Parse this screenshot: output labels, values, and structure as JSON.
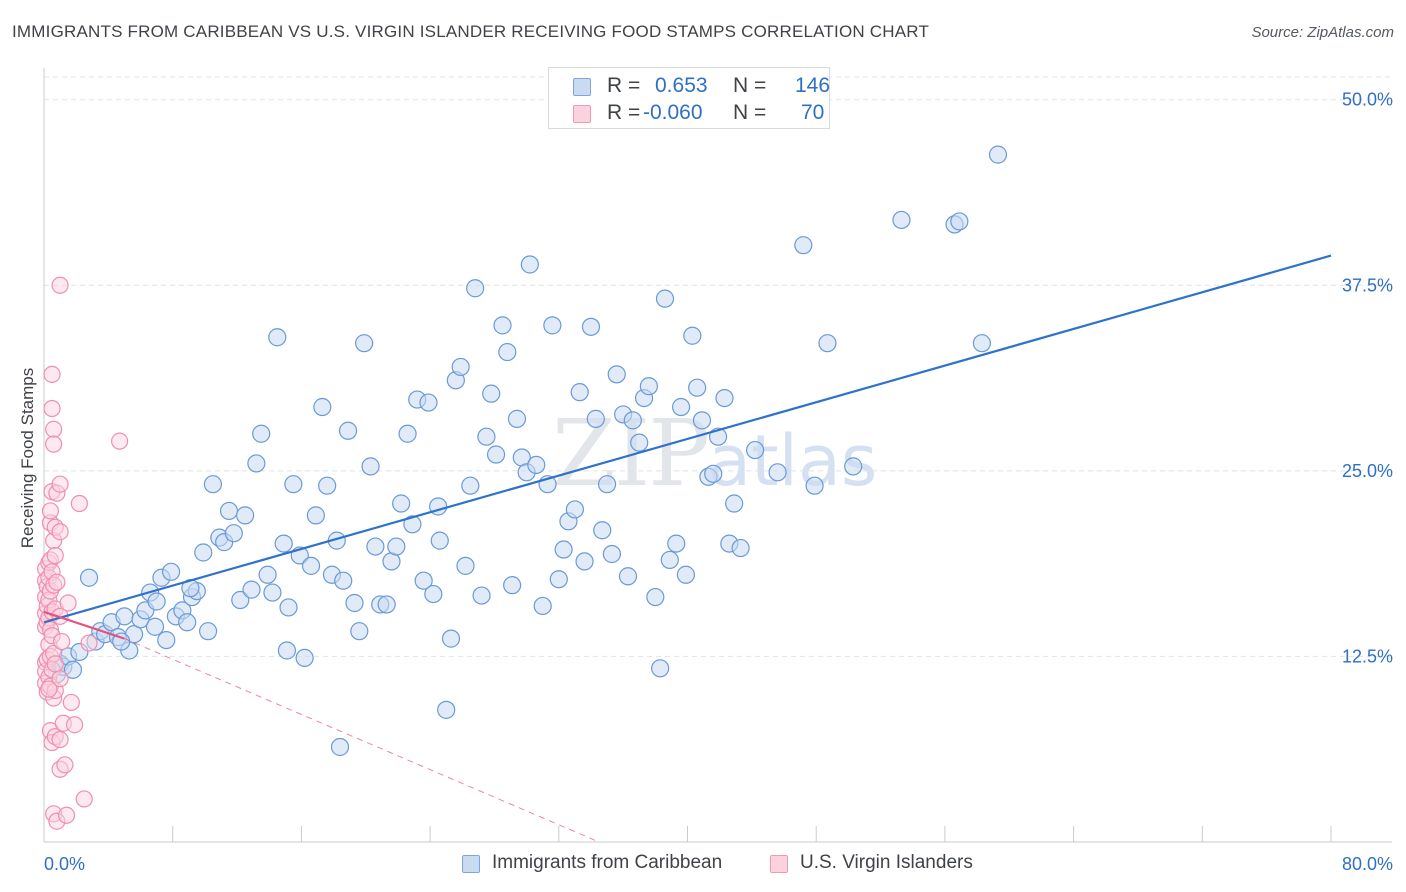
{
  "title": "IMMIGRANTS FROM CARIBBEAN VS U.S. VIRGIN ISLANDER RECEIVING FOOD STAMPS CORRELATION CHART",
  "source": "Source: ZipAtlas.com",
  "watermark": {
    "zip": "ZIP",
    "atlas": "atlas"
  },
  "legend_top": {
    "rows": [
      {
        "r_label": "R =",
        "r_value": "0.653",
        "n_label": "N =",
        "n_value": "146"
      },
      {
        "r_label": "R =",
        "r_value": "-0.060",
        "n_label": "N =",
        "n_value": "70"
      }
    ]
  },
  "colors": {
    "blue_fill": "#c9dbf3",
    "blue_stroke": "#6a9ad6",
    "blue_line": "#2f72cc",
    "pink_fill": "#fbd3df",
    "pink_stroke": "#ef8fb0",
    "pink_line": "#e6527c",
    "grid": "#dfe3e8",
    "axis_label": "#2f6fc4"
  },
  "chart_data": {
    "type": "scatter",
    "title": "IMMIGRANTS FROM CARIBBEAN VS U.S. VIRGIN ISLANDER RECEIVING FOOD STAMPS CORRELATION CHART",
    "xlabel": "",
    "ylabel": "Receiving Food Stamps",
    "xlim": [
      0,
      80
    ],
    "ylim": [
      0,
      52
    ],
    "x_tick_labels": [
      "0.0%",
      "80.0%"
    ],
    "y_ticks": [
      12.5,
      25.0,
      37.5,
      50.0
    ],
    "y_tick_labels": [
      "12.5%",
      "25.0%",
      "37.5%",
      "50.0%"
    ],
    "grid": true,
    "series": [
      {
        "name": "Immigrants from Caribbean",
        "color": "#6a9ad6",
        "R": 0.653,
        "N": 146,
        "trend": {
          "x": [
            0,
            80
          ],
          "y": [
            14.8,
            39.5
          ]
        },
        "points": [
          [
            0.8,
            11.3
          ],
          [
            1.0,
            12.0
          ],
          [
            1.2,
            11.8
          ],
          [
            1.5,
            12.5
          ],
          [
            1.8,
            11.6
          ],
          [
            2.2,
            12.8
          ],
          [
            2.8,
            17.8
          ],
          [
            3.2,
            13.5
          ],
          [
            3.5,
            14.2
          ],
          [
            3.8,
            14.0
          ],
          [
            4.2,
            14.8
          ],
          [
            4.6,
            13.8
          ],
          [
            5.0,
            15.2
          ],
          [
            5.3,
            12.9
          ],
          [
            5.6,
            14.0
          ],
          [
            6.0,
            15.0
          ],
          [
            6.3,
            15.6
          ],
          [
            6.6,
            16.8
          ],
          [
            6.9,
            14.5
          ],
          [
            7.3,
            17.8
          ],
          [
            7.6,
            13.6
          ],
          [
            7.9,
            18.2
          ],
          [
            8.2,
            15.2
          ],
          [
            8.6,
            15.6
          ],
          [
            8.9,
            14.8
          ],
          [
            9.2,
            16.5
          ],
          [
            9.5,
            16.9
          ],
          [
            9.9,
            19.5
          ],
          [
            10.2,
            14.2
          ],
          [
            10.5,
            24.1
          ],
          [
            10.9,
            20.5
          ],
          [
            11.2,
            20.2
          ],
          [
            11.5,
            22.3
          ],
          [
            11.8,
            20.8
          ],
          [
            12.2,
            16.3
          ],
          [
            12.5,
            22.0
          ],
          [
            12.9,
            17.0
          ],
          [
            13.2,
            25.5
          ],
          [
            13.5,
            27.5
          ],
          [
            13.9,
            18.0
          ],
          [
            14.2,
            16.8
          ],
          [
            14.5,
            34.0
          ],
          [
            14.9,
            20.1
          ],
          [
            15.2,
            15.8
          ],
          [
            15.5,
            24.1
          ],
          [
            15.9,
            19.3
          ],
          [
            16.2,
            12.4
          ],
          [
            16.6,
            18.6
          ],
          [
            16.9,
            22.0
          ],
          [
            17.3,
            29.3
          ],
          [
            17.6,
            24.0
          ],
          [
            17.9,
            18.0
          ],
          [
            18.2,
            20.3
          ],
          [
            18.6,
            17.6
          ],
          [
            18.9,
            27.7
          ],
          [
            19.3,
            16.1
          ],
          [
            19.6,
            14.2
          ],
          [
            19.9,
            33.6
          ],
          [
            20.3,
            25.3
          ],
          [
            20.6,
            19.9
          ],
          [
            20.9,
            16.0
          ],
          [
            21.3,
            16.0
          ],
          [
            21.6,
            18.9
          ],
          [
            21.9,
            19.9
          ],
          [
            22.2,
            22.8
          ],
          [
            22.6,
            27.5
          ],
          [
            22.9,
            21.4
          ],
          [
            23.2,
            29.8
          ],
          [
            23.6,
            17.6
          ],
          [
            23.9,
            29.6
          ],
          [
            24.2,
            16.7
          ],
          [
            24.5,
            22.6
          ],
          [
            24.6,
            20.3
          ],
          [
            25.0,
            8.9
          ],
          [
            25.3,
            13.7
          ],
          [
            25.6,
            31.1
          ],
          [
            25.9,
            32.0
          ],
          [
            26.2,
            18.6
          ],
          [
            26.5,
            24.0
          ],
          [
            26.8,
            37.3
          ],
          [
            27.2,
            16.6
          ],
          [
            27.5,
            27.3
          ],
          [
            27.8,
            30.2
          ],
          [
            28.1,
            26.1
          ],
          [
            28.5,
            34.8
          ],
          [
            28.8,
            33.0
          ],
          [
            29.1,
            17.3
          ],
          [
            29.4,
            28.5
          ],
          [
            29.7,
            25.9
          ],
          [
            30.0,
            24.9
          ],
          [
            30.2,
            38.9
          ],
          [
            30.6,
            25.4
          ],
          [
            31.0,
            15.9
          ],
          [
            31.3,
            24.1
          ],
          [
            31.6,
            34.8
          ],
          [
            32.0,
            17.7
          ],
          [
            32.3,
            19.7
          ],
          [
            32.6,
            21.6
          ],
          [
            33.0,
            22.4
          ],
          [
            33.3,
            30.3
          ],
          [
            33.6,
            18.9
          ],
          [
            34.0,
            34.7
          ],
          [
            34.3,
            28.5
          ],
          [
            34.7,
            21.0
          ],
          [
            35.0,
            24.1
          ],
          [
            35.3,
            19.4
          ],
          [
            35.6,
            31.5
          ],
          [
            36.0,
            28.8
          ],
          [
            36.3,
            17.9
          ],
          [
            36.6,
            28.4
          ],
          [
            37.0,
            26.9
          ],
          [
            37.3,
            29.9
          ],
          [
            37.6,
            30.7
          ],
          [
            38.0,
            16.5
          ],
          [
            38.3,
            11.7
          ],
          [
            38.6,
            36.6
          ],
          [
            38.9,
            19.0
          ],
          [
            39.3,
            20.1
          ],
          [
            39.6,
            29.3
          ],
          [
            39.9,
            18.0
          ],
          [
            40.3,
            34.1
          ],
          [
            40.6,
            30.6
          ],
          [
            40.9,
            28.4
          ],
          [
            41.3,
            24.6
          ],
          [
            41.6,
            24.8
          ],
          [
            41.9,
            27.3
          ],
          [
            42.3,
            29.9
          ],
          [
            42.6,
            20.1
          ],
          [
            42.9,
            22.8
          ],
          [
            43.3,
            19.8
          ],
          [
            44.2,
            26.4
          ],
          [
            45.6,
            24.9
          ],
          [
            47.2,
            40.2
          ],
          [
            47.9,
            24.0
          ],
          [
            48.7,
            33.6
          ],
          [
            50.3,
            25.3
          ],
          [
            53.3,
            41.9
          ],
          [
            56.6,
            41.6
          ],
          [
            56.9,
            41.8
          ],
          [
            58.3,
            33.6
          ],
          [
            59.3,
            46.3
          ],
          [
            18.4,
            6.4
          ],
          [
            4.8,
            13.5
          ],
          [
            7.0,
            16.2
          ],
          [
            9.1,
            17.1
          ],
          [
            15.1,
            12.9
          ]
        ]
      },
      {
        "name": "U.S. Virgin Islanders",
        "color": "#ef8fb0",
        "R": -0.06,
        "N": 70,
        "trend": {
          "x": [
            0,
            5.0
          ],
          "y": [
            15.5,
            13.7
          ]
        },
        "trend_extended": {
          "x": [
            5.0,
            34.5
          ],
          "y": [
            13.7,
            0.0
          ]
        },
        "points": [
          [
            0.1,
            18.4
          ],
          [
            0.1,
            17.6
          ],
          [
            0.1,
            16.5
          ],
          [
            0.1,
            15.4
          ],
          [
            0.1,
            14.5
          ],
          [
            0.1,
            12.1
          ],
          [
            0.1,
            11.5
          ],
          [
            0.1,
            10.7
          ],
          [
            0.2,
            17.2
          ],
          [
            0.2,
            15.9
          ],
          [
            0.2,
            14.8
          ],
          [
            0.2,
            12.3
          ],
          [
            0.2,
            10.1
          ],
          [
            0.3,
            18.8
          ],
          [
            0.3,
            17.8
          ],
          [
            0.3,
            16.3
          ],
          [
            0.3,
            15.1
          ],
          [
            0.3,
            13.3
          ],
          [
            0.3,
            11.1
          ],
          [
            0.4,
            21.5
          ],
          [
            0.4,
            22.3
          ],
          [
            0.4,
            19.0
          ],
          [
            0.4,
            16.9
          ],
          [
            0.4,
            14.3
          ],
          [
            0.4,
            12.5
          ],
          [
            0.4,
            10.5
          ],
          [
            0.4,
            7.5
          ],
          [
            0.5,
            29.2
          ],
          [
            0.5,
            31.5
          ],
          [
            0.5,
            23.6
          ],
          [
            0.5,
            18.2
          ],
          [
            0.5,
            15.5
          ],
          [
            0.5,
            13.9
          ],
          [
            0.5,
            11.6
          ],
          [
            0.5,
            6.7
          ],
          [
            0.6,
            27.8
          ],
          [
            0.6,
            26.8
          ],
          [
            0.6,
            20.3
          ],
          [
            0.6,
            17.3
          ],
          [
            0.6,
            12.7
          ],
          [
            0.6,
            9.7
          ],
          [
            0.6,
            1.9
          ],
          [
            0.7,
            21.2
          ],
          [
            0.7,
            19.3
          ],
          [
            0.7,
            15.7
          ],
          [
            0.7,
            12.0
          ],
          [
            0.7,
            10.2
          ],
          [
            0.7,
            7.1
          ],
          [
            0.8,
            23.5
          ],
          [
            0.8,
            17.5
          ],
          [
            0.8,
            1.4
          ],
          [
            1.0,
            37.5
          ],
          [
            1.0,
            24.1
          ],
          [
            1.0,
            20.9
          ],
          [
            1.0,
            15.2
          ],
          [
            1.0,
            11.0
          ],
          [
            1.0,
            6.9
          ],
          [
            1.0,
            4.9
          ],
          [
            1.1,
            13.5
          ],
          [
            1.2,
            8.0
          ],
          [
            1.3,
            5.2
          ],
          [
            1.4,
            1.8
          ],
          [
            1.5,
            16.1
          ],
          [
            1.7,
            9.4
          ],
          [
            1.9,
            7.9
          ],
          [
            2.2,
            22.8
          ],
          [
            2.5,
            2.9
          ],
          [
            2.8,
            13.4
          ],
          [
            4.7,
            27.0
          ],
          [
            0.3,
            10.3
          ]
        ]
      }
    ]
  },
  "legend_bottom": [
    {
      "label": "Immigrants from Caribbean"
    },
    {
      "label": "U.S. Virgin Islanders"
    }
  ]
}
